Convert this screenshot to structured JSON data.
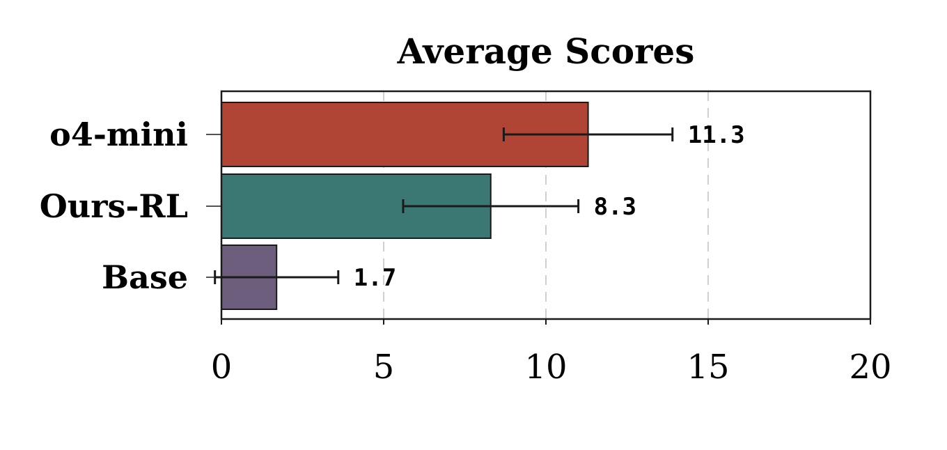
{
  "chart_data": {
    "type": "bar",
    "orientation": "horizontal",
    "title": "Average Scores",
    "xlabel": "",
    "ylabel": "",
    "xlim": [
      0,
      20
    ],
    "xticks": [
      0,
      5,
      10,
      15,
      20
    ],
    "grid": "vertical dashed",
    "categories": [
      "o4-mini",
      "Ours-RL",
      "Base"
    ],
    "values": [
      11.3,
      8.3,
      1.7
    ],
    "value_labels": [
      "11.3",
      "8.3",
      "1.7"
    ],
    "error_low": [
      8.7,
      5.6,
      -0.2
    ],
    "error_high": [
      13.9,
      11.0,
      3.6
    ],
    "colors": [
      "#b04535",
      "#3c7873",
      "#6c5e7c"
    ]
  }
}
